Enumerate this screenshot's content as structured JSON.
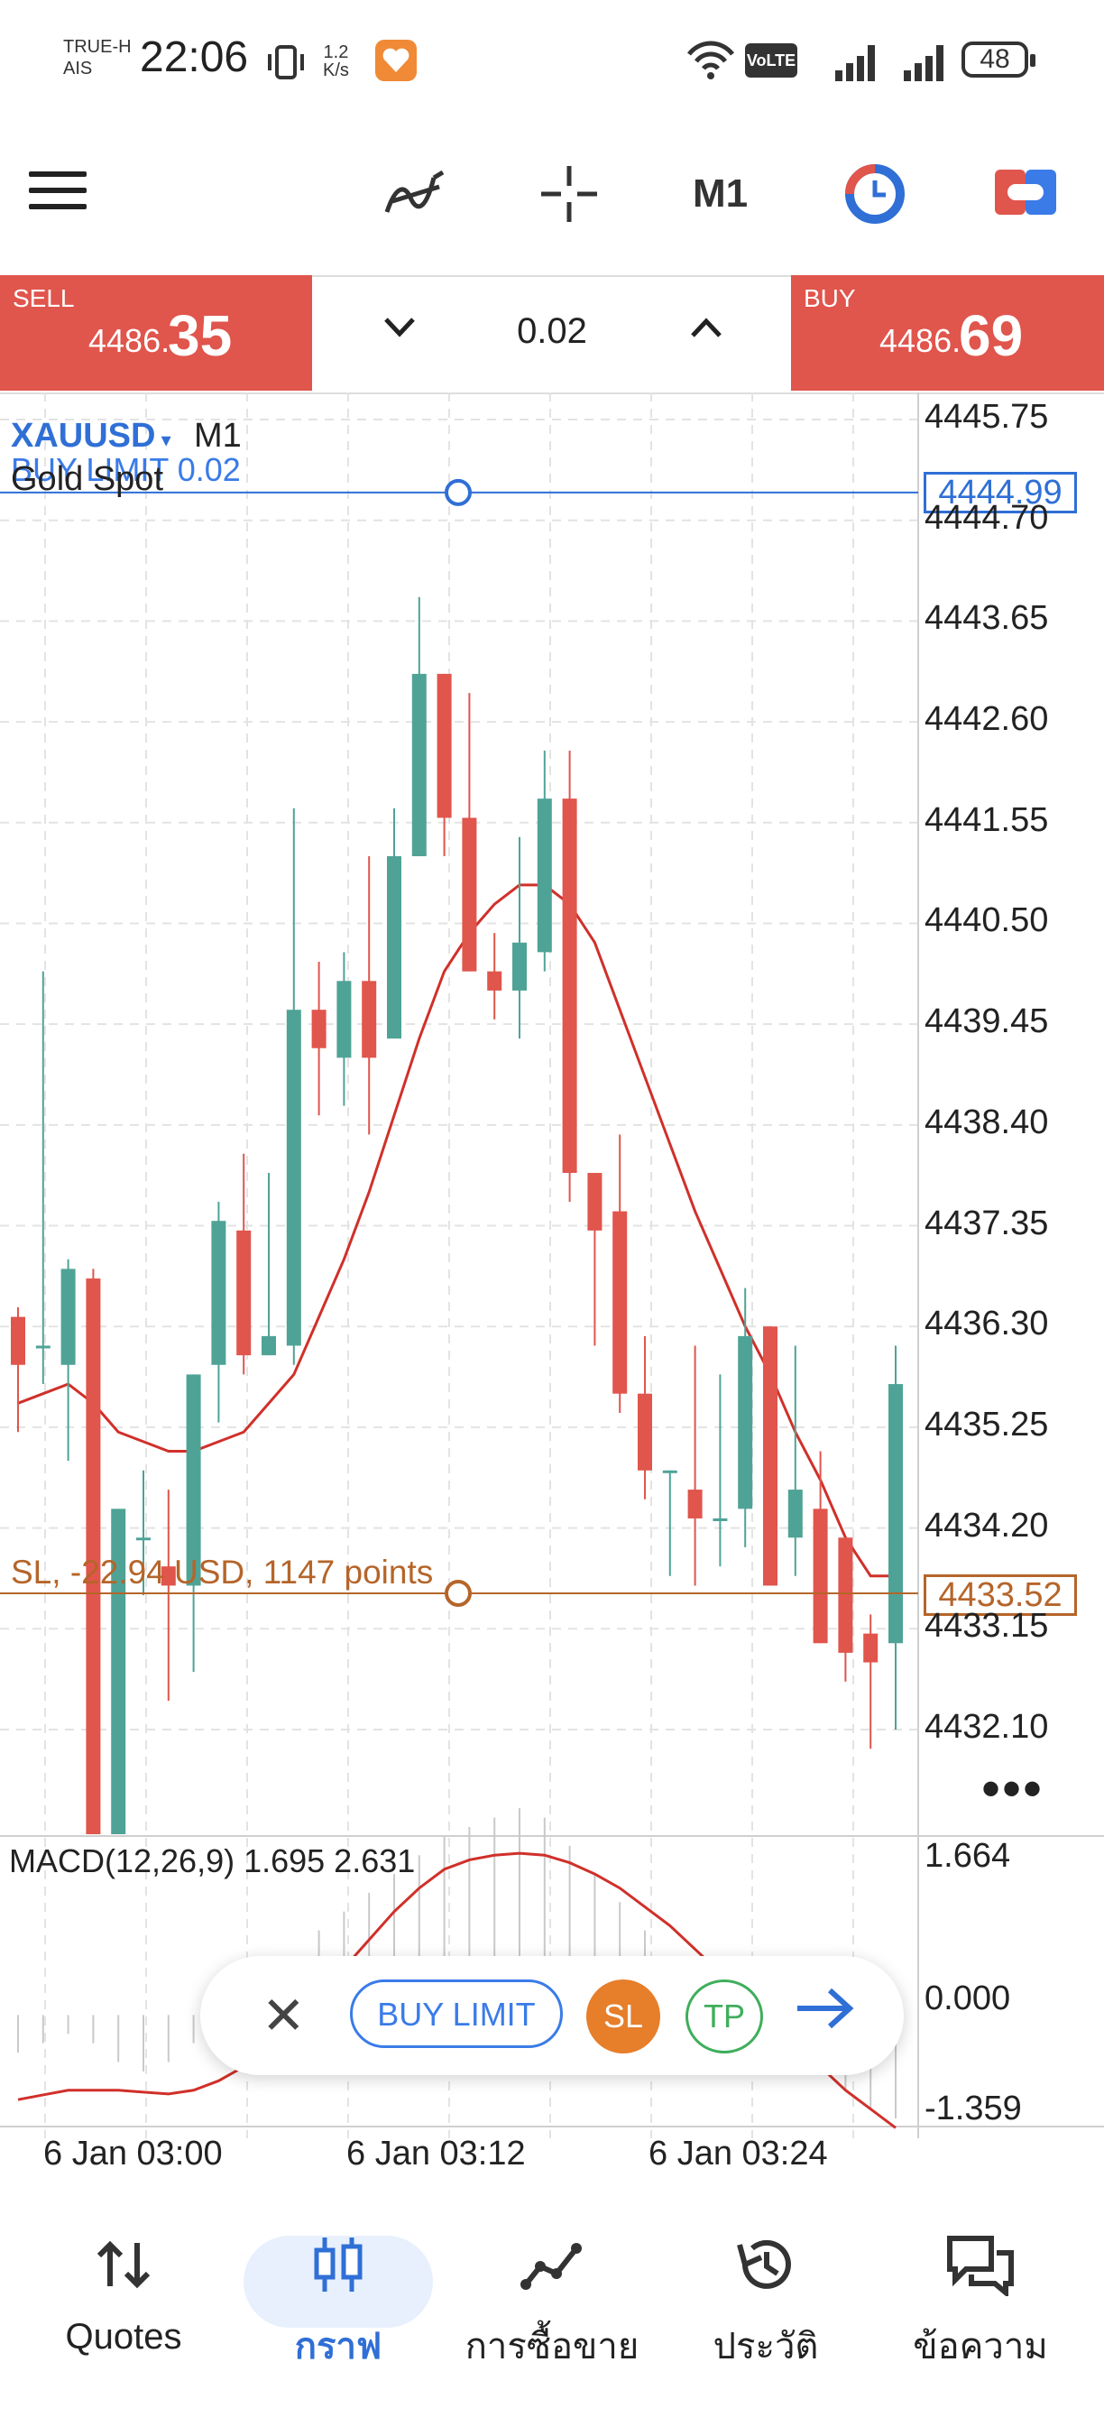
{
  "status_bar": {
    "carrier_line1": "TRUE-H",
    "carrier_line2": "AIS",
    "time": "22:06",
    "net_speed_value": "1.2",
    "net_speed_unit": "K/s",
    "volte": "VoLTE",
    "battery": "48"
  },
  "toolbar": {
    "timeframe": "M1",
    "icons": [
      "menu-icon",
      "indicators-icon",
      "crosshair-icon",
      "timeframe-M1",
      "clock-icon",
      "trade-icon"
    ]
  },
  "trade_bar": {
    "sell_label": "SELL",
    "sell_price_small": "4486.",
    "sell_price_big": "35",
    "buy_label": "BUY",
    "buy_price_small": "4486.",
    "buy_price_big": "69",
    "lot": "0.02"
  },
  "chart": {
    "symbol": "XAUUSD",
    "timeframe": "M1",
    "description": "Gold Spot",
    "order_label": "BUY LIMIT 0.02",
    "buy_limit_price": "4444.99",
    "sl_label": "SL, -22.94 USD, 1147 points",
    "sl_price": "4433.52",
    "price_ticks": [
      "4445.75",
      "4444.70",
      "4443.65",
      "4442.60",
      "4441.55",
      "4440.50",
      "4439.45",
      "4438.40",
      "4437.35",
      "4436.30",
      "4435.25",
      "4434.20",
      "4433.15",
      "4432.10"
    ],
    "macd_label": "MACD(12,26,9) 1.695 2.631",
    "macd_ticks": [
      "1.664",
      "0.000",
      "-1.359"
    ],
    "time_labels": [
      "6 Jan 03:00",
      "6 Jan 03:12",
      "6 Jan 03:24"
    ],
    "colors": {
      "bull": "#4fa396",
      "bear": "#e0554c",
      "ma": "#d0302a",
      "buy_limit": "#2f6fd6",
      "sl": "#b5652a"
    }
  },
  "chart_data": {
    "type": "candlestick",
    "ylim": [
      4431.6,
      4446.2
    ],
    "candles": [
      {
        "o": 4436.4,
        "c": 4435.9,
        "h": 4436.5,
        "l": 4435.2
      },
      {
        "o": 4436.1,
        "c": 4436.1,
        "h": 4440.0,
        "l": 4435.7
      },
      {
        "o": 4435.9,
        "c": 4436.9,
        "h": 4437.0,
        "l": 4434.9
      },
      {
        "o": 4436.8,
        "c": 4430.9,
        "h": 4436.9,
        "l": 4430.9
      },
      {
        "o": 4430.9,
        "c": 4434.4,
        "h": 4434.4,
        "l": 4430.9
      },
      {
        "o": 4434.1,
        "c": 4434.1,
        "h": 4434.8,
        "l": 4433.5
      },
      {
        "o": 4433.8,
        "c": 4433.6,
        "h": 4434.6,
        "l": 4432.4
      },
      {
        "o": 4433.6,
        "c": 4435.8,
        "h": 4435.8,
        "l": 4432.7
      },
      {
        "o": 4435.9,
        "c": 4437.4,
        "h": 4437.6,
        "l": 4435.3
      },
      {
        "o": 4437.3,
        "c": 4436.0,
        "h": 4438.1,
        "l": 4435.8
      },
      {
        "o": 4436.0,
        "c": 4436.2,
        "h": 4437.9,
        "l": 4436.0
      },
      {
        "o": 4436.1,
        "c": 4439.6,
        "h": 4441.7,
        "l": 4435.9
      },
      {
        "o": 4439.6,
        "c": 4439.2,
        "h": 4440.1,
        "l": 4438.5
      },
      {
        "o": 4439.1,
        "c": 4439.9,
        "h": 4440.2,
        "l": 4438.6
      },
      {
        "o": 4439.9,
        "c": 4439.1,
        "h": 4441.2,
        "l": 4438.3
      },
      {
        "o": 4439.3,
        "c": 4441.2,
        "h": 4441.7,
        "l": 4439.3
      },
      {
        "o": 4441.2,
        "c": 4443.1,
        "h": 4443.9,
        "l": 4441.2
      },
      {
        "o": 4443.1,
        "c": 4441.6,
        "h": 4443.1,
        "l": 4441.2
      },
      {
        "o": 4441.6,
        "c": 4440.0,
        "h": 4442.9,
        "l": 4440.0
      },
      {
        "o": 4440.0,
        "c": 4439.8,
        "h": 4440.4,
        "l": 4439.5
      },
      {
        "o": 4439.8,
        "c": 4440.3,
        "h": 4441.4,
        "l": 4439.3
      },
      {
        "o": 4440.2,
        "c": 4441.8,
        "h": 4442.3,
        "l": 4440.0
      },
      {
        "o": 4441.8,
        "c": 4437.9,
        "h": 4442.3,
        "l": 4437.6
      },
      {
        "o": 4437.9,
        "c": 4437.3,
        "h": 4437.9,
        "l": 4436.1
      },
      {
        "o": 4437.5,
        "c": 4435.6,
        "h": 4438.3,
        "l": 4435.4
      },
      {
        "o": 4435.6,
        "c": 4434.8,
        "h": 4436.2,
        "l": 4434.5
      },
      {
        "o": 4434.8,
        "c": 4434.8,
        "h": 4434.8,
        "l": 4433.7
      },
      {
        "o": 4434.6,
        "c": 4434.3,
        "h": 4436.1,
        "l": 4433.6
      },
      {
        "o": 4434.3,
        "c": 4434.3,
        "h": 4435.8,
        "l": 4433.8
      },
      {
        "o": 4434.4,
        "c": 4436.2,
        "h": 4436.7,
        "l": 4434.0
      },
      {
        "o": 4436.3,
        "c": 4433.6,
        "h": 4436.3,
        "l": 4433.6
      },
      {
        "o": 4434.1,
        "c": 4434.6,
        "h": 4436.1,
        "l": 4433.7
      },
      {
        "o": 4434.4,
        "c": 4433.0,
        "h": 4435.0,
        "l": 4433.0
      },
      {
        "o": 4434.1,
        "c": 4432.9,
        "h": 4434.1,
        "l": 4432.6
      },
      {
        "o": 4433.1,
        "c": 4432.8,
        "h": 4433.3,
        "l": 4431.9
      },
      {
        "o": 4433.0,
        "c": 4435.7,
        "h": 4436.1,
        "l": 4432.1
      }
    ],
    "ma": [
      4435.5,
      4435.6,
      4435.7,
      4435.5,
      4435.2,
      4435.1,
      4435.0,
      4435.0,
      4435.1,
      4435.2,
      4435.5,
      4435.8,
      4436.4,
      4437.0,
      4437.7,
      4438.5,
      4439.3,
      4440.0,
      4440.4,
      4440.7,
      4440.9,
      4440.9,
      4440.7,
      4440.3,
      4439.6,
      4438.9,
      4438.2,
      4437.5,
      4436.9,
      4436.3,
      4435.8,
      4435.2,
      4434.7,
      4434.1,
      4433.7,
      4433.7
    ],
    "macd_hist": [
      -0.4,
      -0.3,
      -0.2,
      -0.3,
      -0.5,
      -0.6,
      -0.5,
      -0.3,
      -0.1,
      0.1,
      0.3,
      0.6,
      0.9,
      1.1,
      1.3,
      1.5,
      1.7,
      1.9,
      2.0,
      2.1,
      2.2,
      2.1,
      1.8,
      1.5,
      1.2,
      0.9,
      0.6,
      0.3,
      0.1,
      0.0,
      -0.2,
      -0.4,
      -0.6,
      -0.8,
      -1.0,
      -1.1
    ],
    "macd_signal": [
      -0.9,
      -0.85,
      -0.8,
      -0.8,
      -0.8,
      -0.82,
      -0.84,
      -0.8,
      -0.7,
      -0.55,
      -0.35,
      -0.1,
      0.2,
      0.5,
      0.8,
      1.1,
      1.35,
      1.55,
      1.65,
      1.7,
      1.72,
      1.7,
      1.62,
      1.5,
      1.35,
      1.15,
      0.95,
      0.7,
      0.45,
      0.2,
      -0.05,
      -0.3,
      -0.55,
      -0.8,
      -1.0,
      -1.2
    ]
  },
  "float_bar": {
    "buy_limit": "BUY LIMIT",
    "sl": "SL",
    "tp": "TP"
  },
  "bottom_nav": [
    {
      "label": "Quotes",
      "icon": "quotes-icon"
    },
    {
      "label": "กราฟ",
      "icon": "chart-icon"
    },
    {
      "label": "การซื้อขาย",
      "icon": "trade-icon"
    },
    {
      "label": "ประวัติ",
      "icon": "history-icon"
    },
    {
      "label": "ข้อความ",
      "icon": "messages-icon"
    }
  ]
}
